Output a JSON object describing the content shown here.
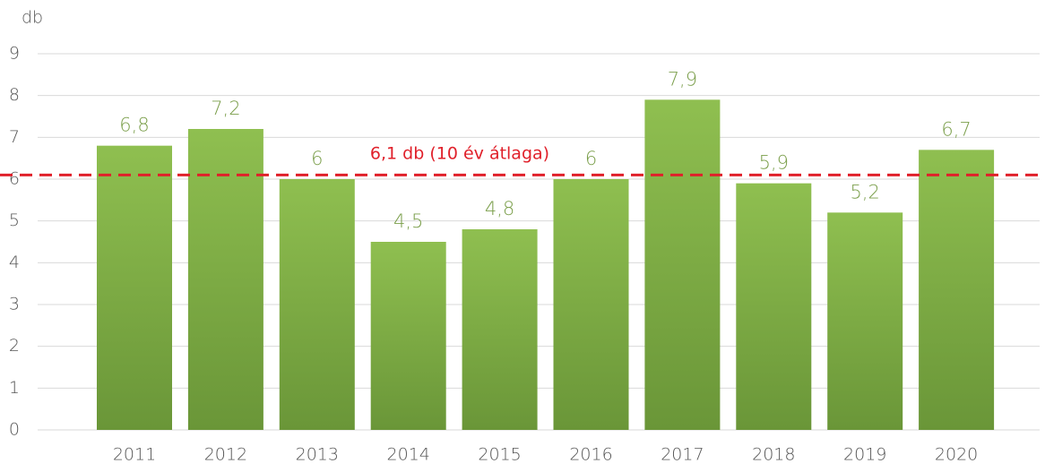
{
  "chart_data": {
    "type": "bar",
    "y_label": "db",
    "categories": [
      "2011",
      "2012",
      "2013",
      "2014",
      "2015",
      "2016",
      "2017",
      "2018",
      "2019",
      "2020"
    ],
    "values": [
      6.8,
      7.2,
      6,
      4.5,
      4.8,
      6,
      7.9,
      5.9,
      5.2,
      6.7
    ],
    "value_labels": [
      "6,8",
      "7,2",
      "6",
      "4,5",
      "4,8",
      "6",
      "7,9",
      "5,9",
      "5,2",
      "6,7"
    ],
    "color": "#7fab45",
    "label_color": "#7a9e4a",
    "ylim": [
      0,
      9
    ],
    "yticks": [
      0,
      1,
      2,
      3,
      4,
      5,
      6,
      7,
      8,
      9
    ],
    "grid": true,
    "average": {
      "value": 6.1,
      "label": "6,1 db (10 év átlaga)",
      "color": "#e0202a"
    }
  }
}
